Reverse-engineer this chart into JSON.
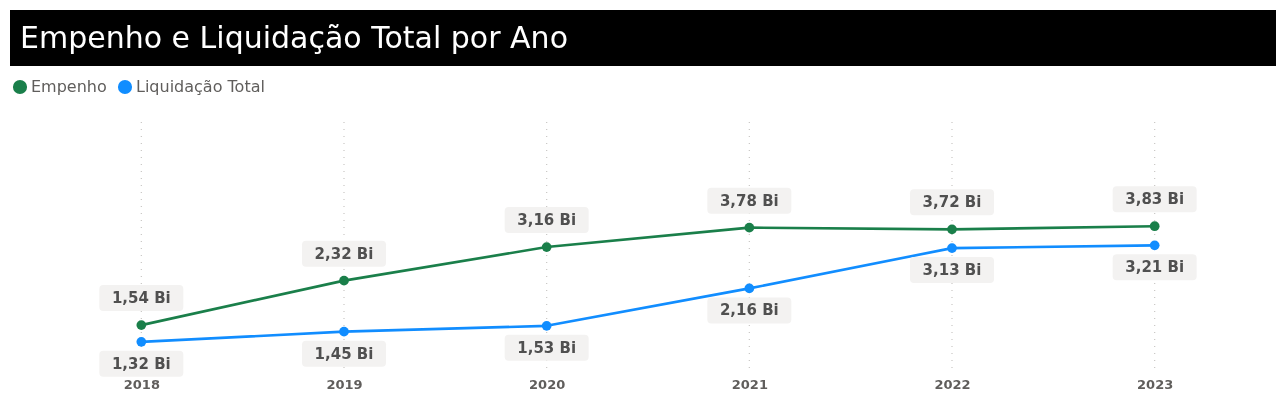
{
  "chart_data": {
    "type": "line",
    "title": "Empenho e Liquidação Total por Ano",
    "categories": [
      "2018",
      "2019",
      "2020",
      "2021",
      "2022",
      "2023"
    ],
    "series": [
      {
        "name": "Empenho",
        "color": "#1a7f4a",
        "values": [
          1.54,
          2.32,
          3.16,
          3.78,
          3.72,
          3.83
        ],
        "value_labels": [
          "1,54 Bi",
          "2,32 Bi",
          "3,16 Bi",
          "3,78 Bi",
          "3,72 Bi",
          "3,83 Bi"
        ]
      },
      {
        "name": "Liquidação Total",
        "color": "#118dff",
        "values": [
          1.32,
          1.45,
          1.53,
          2.16,
          3.13,
          3.21
        ],
        "value_labels": [
          "1,32 Bi",
          "1,45 Bi",
          "1,53 Bi",
          "2,16 Bi",
          "3,13 Bi",
          "3,21 Bi"
        ]
      }
    ],
    "log": true,
    "ylim": [
      1,
      10
    ],
    "tick_labels": "x",
    "grid": "x",
    "legend": "top left",
    "marker": "circle",
    "line_style": "solid"
  }
}
